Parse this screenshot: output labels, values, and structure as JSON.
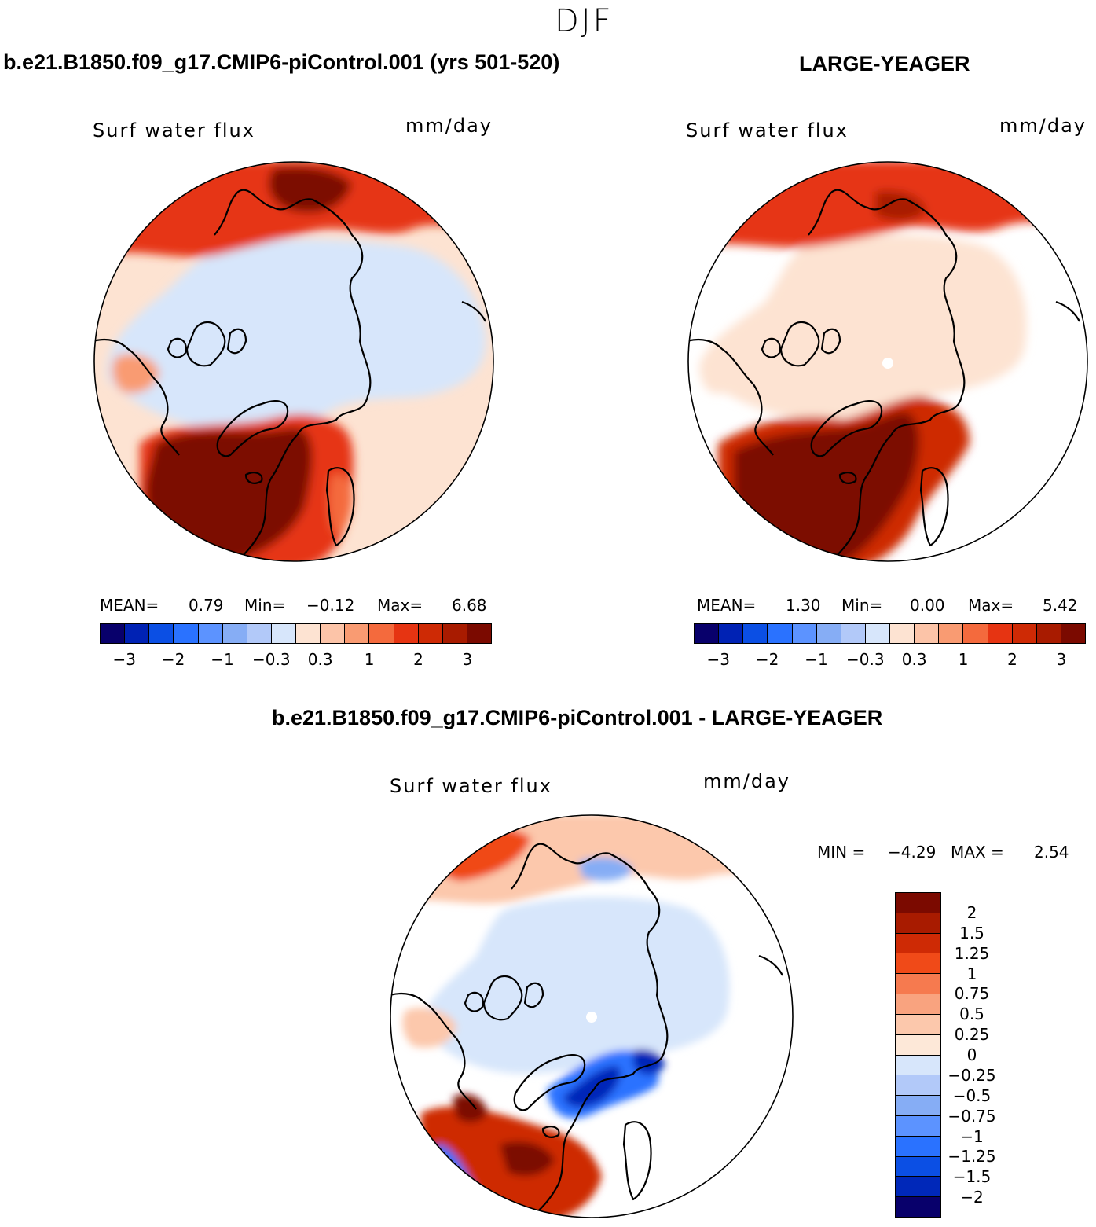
{
  "figure": {
    "season": "DJF"
  },
  "panels": {
    "top_left": {
      "title": "b.e21.B1850.f09_g17.CMIP6-piControl.001 (yrs 501-520)",
      "variable": "Surf water flux",
      "units": "mm/day",
      "stats": {
        "mean_label": "MEAN=",
        "mean": "0.79",
        "min_label": "Min=",
        "min": "−0.12",
        "max_label": "Max=",
        "max": "6.68"
      }
    },
    "top_right": {
      "title": "LARGE-YEAGER",
      "variable": "Surf water flux",
      "units": "mm/day",
      "stats": {
        "mean_label": "MEAN=",
        "mean": "1.30",
        "min_label": "Min=",
        "min": "0.00",
        "max_label": "Max=",
        "max": "5.42"
      }
    },
    "bottom": {
      "title": "b.e21.B1850.f09_g17.CMIP6-piControl.001 - LARGE-YEAGER",
      "variable": "Surf water flux",
      "units": "mm/day",
      "stats": {
        "min_label": "MIN =",
        "min": "−4.29",
        "max_label": "MAX =",
        "max": "2.54"
      }
    }
  },
  "colorbar_top": {
    "colors": [
      "#08006b",
      "#0022b4",
      "#0b4fe4",
      "#2a72ff",
      "#5c93ff",
      "#86adf5",
      "#b2c9f9",
      "#d7e6fb",
      "#fde3d2",
      "#fcc4a8",
      "#f99b72",
      "#f46a3d",
      "#e63412",
      "#ce2a05",
      "#a81b00",
      "#7b0a00"
    ],
    "ticks": [
      "−3",
      "−2",
      "−1",
      "−0.3",
      "0.3",
      "1",
      "2",
      "3"
    ]
  },
  "colorbar_bottom": {
    "colors": [
      "#7b0a00",
      "#a81b00",
      "#ce2a05",
      "#f04a18",
      "#f67a4f",
      "#f9a37f",
      "#fcc8ac",
      "#fde8d8",
      "#d7e6fb",
      "#b2c9f9",
      "#86adf5",
      "#5c93ff",
      "#2a72ff",
      "#0b4fe4",
      "#0028b9",
      "#08006b"
    ],
    "ticks": [
      "2",
      "1.5",
      "1.25",
      "1",
      "0.75",
      "0.5",
      "0.25",
      "0",
      "−0.25",
      "−0.5",
      "−0.75",
      "−1",
      "−1.25",
      "−1.5",
      "−2"
    ]
  }
}
